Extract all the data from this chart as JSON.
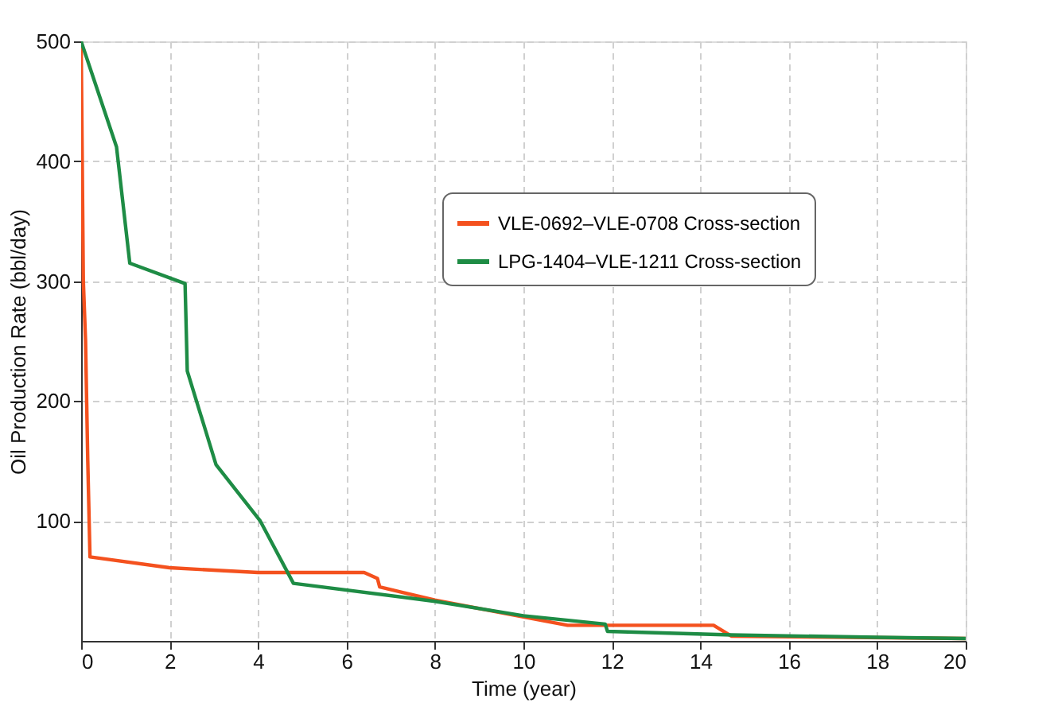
{
  "chart_data": {
    "type": "line",
    "xlabel": "Time (year)",
    "ylabel": "Oil Production Rate (bbl/day)",
    "xlim": [
      0,
      20
    ],
    "xticks": [
      0,
      2,
      4,
      6,
      8,
      10,
      12,
      14,
      16,
      18,
      20
    ],
    "ylim": [
      0,
      500
    ],
    "yticks": [
      100,
      200,
      300,
      400,
      500
    ],
    "grid": true,
    "legend": "top right",
    "line_style": "solid",
    "marker": "none",
    "series": [
      {
        "name": "VLE-0692–VLE-0708 Cross-section",
        "color": "#f4511e",
        "x": [
          0,
          0.05,
          0.1,
          0.15,
          0.2,
          2,
          4,
          6.4,
          6.7,
          6.75,
          8,
          10,
          11,
          12,
          14.3,
          14.7,
          20
        ],
        "values": [
          500,
          300,
          250,
          150,
          70,
          61,
          57,
          57,
          52,
          45,
          34,
          20,
          13,
          13,
          13,
          4,
          2
        ]
      },
      {
        "name": "LPG-1404–VLE-1211 Cross-section",
        "color": "#1e8c45",
        "x": [
          0,
          0.8,
          1.1,
          2.35,
          2.4,
          3.05,
          4.05,
          4.8,
          8,
          10,
          11.85,
          11.9,
          14.7,
          18,
          20
        ],
        "values": [
          500,
          412,
          315,
          298,
          225,
          147,
          100,
          48,
          33,
          21,
          14,
          8,
          5,
          3,
          2
        ]
      }
    ]
  }
}
